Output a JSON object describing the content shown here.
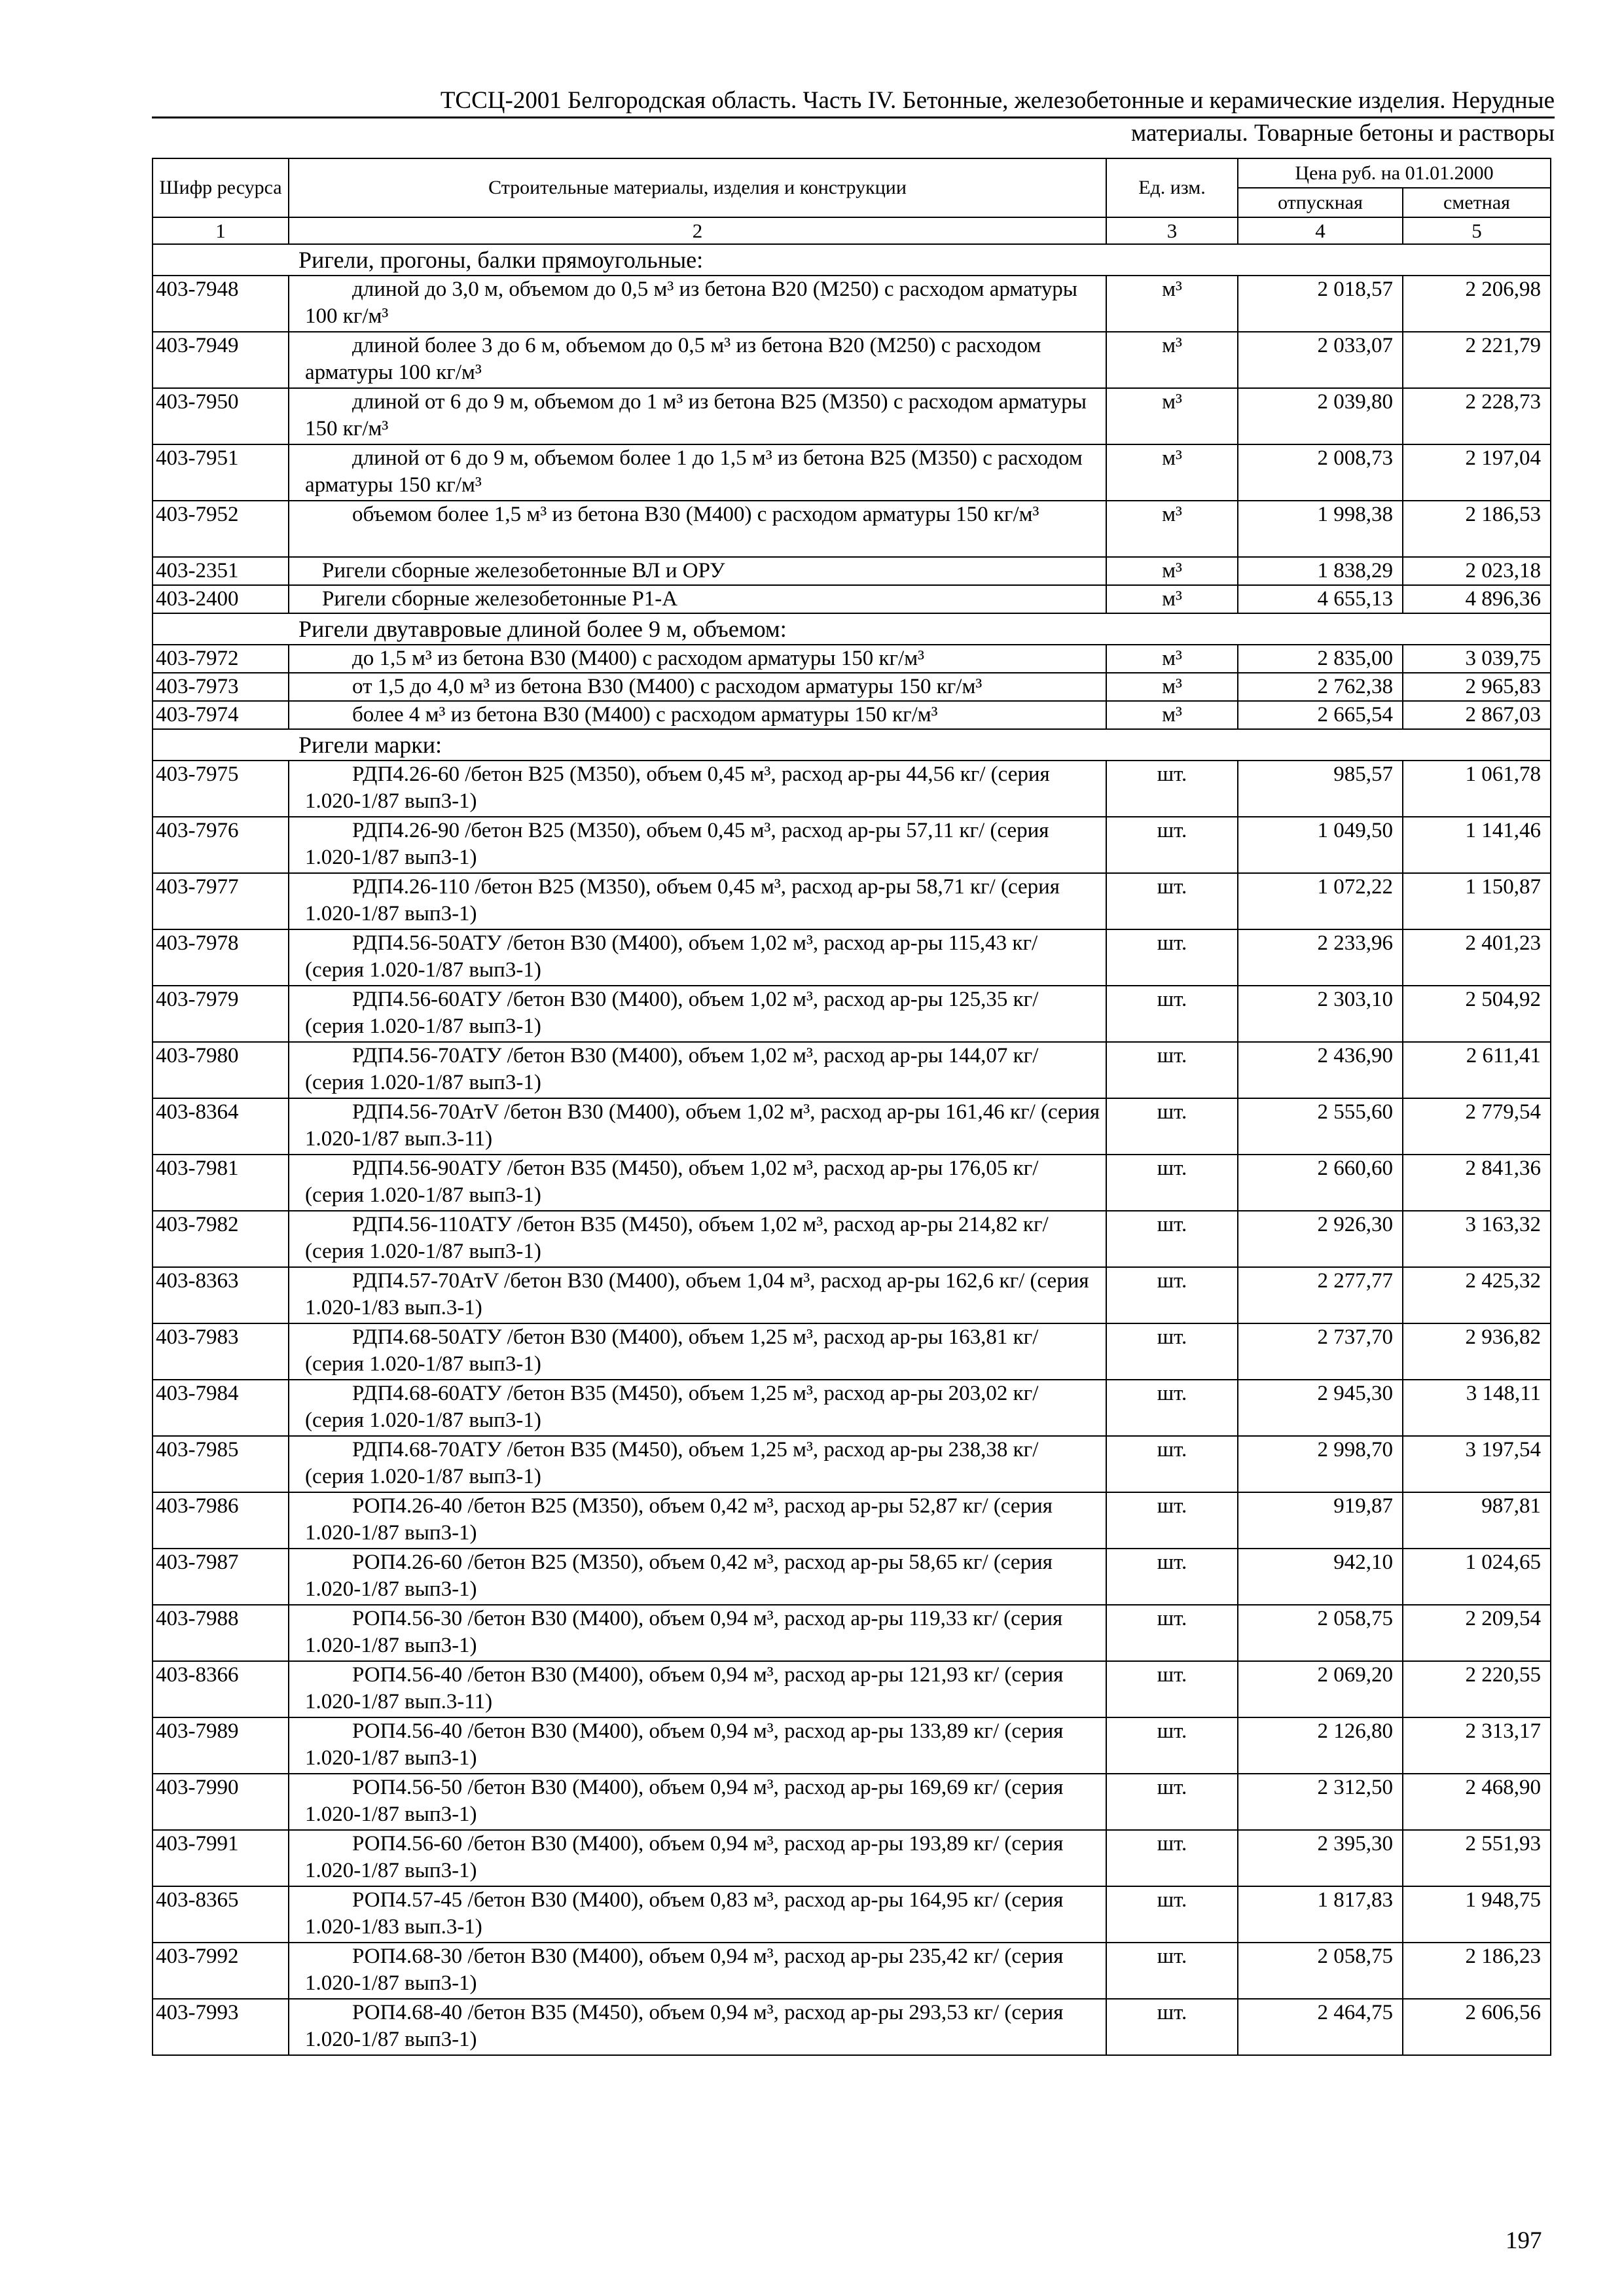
{
  "header": {
    "line1": "ТССЦ-2001 Белгородская область. Часть IV. Бетонные, железобетонные и керамические изделия. Нерудные",
    "line2": "материалы. Товарные бетоны и растворы"
  },
  "table": {
    "col_code": "Шифр ресурса",
    "col_desc": "Строительные материалы, изделия и конструкции",
    "col_unit": "Ед. изм.",
    "col_price": "Цена руб. на 01.01.2000",
    "col_release": "отпускная",
    "col_estimate": "сметная",
    "col_numbers": [
      "1",
      "2",
      "3",
      "4",
      "5"
    ]
  },
  "groups": [
    {
      "title": "Ригели, прогоны, балки прямоугольные:",
      "rows": [
        {
          "code": "403-7948",
          "desc": "длиной до 3,0 м, объемом до 0,5 м³ из бетона В20 (М250) с расходом арматуры 100 кг/м³",
          "unit": "м³",
          "release": "2 018,57",
          "estimate": "2 206,98"
        },
        {
          "code": "403-7949",
          "desc": "длиной более 3 до 6 м, объемом до 0,5 м³ из бетона В20 (М250) с расходом арматуры 100 кг/м³",
          "unit": "м³",
          "release": "2 033,07",
          "estimate": "2 221,79"
        },
        {
          "code": "403-7950",
          "desc": "длиной от 6 до 9 м, объемом до 1 м³ из бетона В25 (М350) с расходом арматуры 150 кг/м³",
          "unit": "м³",
          "release": "2 039,80",
          "estimate": "2 228,73"
        },
        {
          "code": "403-7951",
          "desc": "длиной от 6 до 9 м, объемом более 1 до 1,5 м³ из бетона В25 (М350) с расходом арматуры 150 кг/м³",
          "unit": "м³",
          "release": "2 008,73",
          "estimate": "2 197,04"
        },
        {
          "code": "403-7952",
          "desc": "объемом более 1,5 м³ из бетона В30 (М400) с расходом арматуры 150 кг/м³",
          "unit": "м³",
          "release": "1 998,38",
          "estimate": "2 186,53"
        },
        {
          "code": "403-2351",
          "desc": "Ригели сборные железобетонные ВЛ и ОРУ",
          "unit": "м³",
          "release": "1 838,29",
          "estimate": "2 023,18",
          "short": true
        },
        {
          "code": "403-2400",
          "desc": "Ригели сборные железобетонные Р1-А",
          "unit": "м³",
          "release": "4 655,13",
          "estimate": "4 896,36",
          "short": true
        }
      ]
    },
    {
      "title": "Ригели двутавровые длиной более 9 м, объемом:",
      "rows": [
        {
          "code": "403-7972",
          "desc": "до 1,5 м³ из бетона В30 (М400) с расходом арматуры 150 кг/м³",
          "unit": "м³",
          "release": "2 835,00",
          "estimate": "3 039,75",
          "one": true
        },
        {
          "code": "403-7973",
          "desc": "от 1,5 до 4,0 м³ из бетона В30 (М400) с расходом арматуры 150 кг/м³",
          "unit": "м³",
          "release": "2 762,38",
          "estimate": "2 965,83",
          "one": true
        },
        {
          "code": "403-7974",
          "desc": "более 4 м³ из бетона В30 (М400) с расходом арматуры 150 кг/м³",
          "unit": "м³",
          "release": "2 665,54",
          "estimate": "2 867,03",
          "one": true
        }
      ]
    },
    {
      "title": "Ригели марки:",
      "rows": [
        {
          "code": "403-7975",
          "desc": "РДП4.26-60 /бетон В25 (М350), объем 0,45 м³, расход ар-ры 44,56 кг/ (серия 1.020-1/87 вып3-1)",
          "unit": "шт.",
          "release": "985,57",
          "estimate": "1 061,78"
        },
        {
          "code": "403-7976",
          "desc": "РДП4.26-90 /бетон В25 (М350), объем 0,45 м³, расход ар-ры 57,11 кг/ (серия 1.020-1/87 вып3-1)",
          "unit": "шт.",
          "release": "1 049,50",
          "estimate": "1 141,46"
        },
        {
          "code": "403-7977",
          "desc": "РДП4.26-110 /бетон В25 (М350), объем 0,45 м³, расход ар-ры 58,71 кг/ (серия 1.020-1/87 вып3-1)",
          "unit": "шт.",
          "release": "1 072,22",
          "estimate": "1 150,87"
        },
        {
          "code": "403-7978",
          "desc": "РДП4.56-50АТУ /бетон В30 (М400), объем 1,02 м³, расход ар-ры 115,43 кг/ (серия 1.020-1/87 вып3-1)",
          "unit": "шт.",
          "release": "2 233,96",
          "estimate": "2 401,23"
        },
        {
          "code": "403-7979",
          "desc": "РДП4.56-60АТУ /бетон В30 (М400), объем 1,02 м³, расход ар-ры 125,35 кг/ (серия 1.020-1/87 вып3-1)",
          "unit": "шт.",
          "release": "2 303,10",
          "estimate": "2 504,92"
        },
        {
          "code": "403-7980",
          "desc": "РДП4.56-70АТУ /бетон В30 (М400), объем 1,02 м³, расход ар-ры 144,07 кг/ (серия 1.020-1/87 вып3-1)",
          "unit": "шт.",
          "release": "2 436,90",
          "estimate": "2 611,41"
        },
        {
          "code": "403-8364",
          "desc": "РДП4.56-70АтV /бетон В30 (М400), объем 1,02 м³, расход ар-ры 161,46 кг/ (серия 1.020-1/87 вып.3-11)",
          "unit": "шт.",
          "release": "2 555,60",
          "estimate": "2 779,54"
        },
        {
          "code": "403-7981",
          "desc": "РДП4.56-90АТУ /бетон В35 (М450), объем 1,02 м³, расход ар-ры 176,05 кг/ (серия 1.020-1/87 вып3-1)",
          "unit": "шт.",
          "release": "2 660,60",
          "estimate": "2 841,36"
        },
        {
          "code": "403-7982",
          "desc": "РДП4.56-110АТУ /бетон В35 (М450), объем 1,02 м³, расход ар-ры 214,82 кг/ (серия 1.020-1/87 вып3-1)",
          "unit": "шт.",
          "release": "2 926,30",
          "estimate": "3 163,32"
        },
        {
          "code": "403-8363",
          "desc": "РДП4.57-70АтV /бетон В30 (М400), объем 1,04 м³, расход ар-ры 162,6 кг/ (серия 1.020-1/83 вып.3-1)",
          "unit": "шт.",
          "release": "2 277,77",
          "estimate": "2 425,32"
        },
        {
          "code": "403-7983",
          "desc": "РДП4.68-50АТУ /бетон В30 (М400), объем 1,25 м³, расход ар-ры 163,81 кг/ (серия 1.020-1/87 вып3-1)",
          "unit": "шт.",
          "release": "2 737,70",
          "estimate": "2 936,82"
        },
        {
          "code": "403-7984",
          "desc": "РДП4.68-60АТУ /бетон В35 (М450), объем 1,25 м³, расход ар-ры 203,02 кг/ (серия 1.020-1/87 вып3-1)",
          "unit": "шт.",
          "release": "2 945,30",
          "estimate": "3 148,11"
        },
        {
          "code": "403-7985",
          "desc": "РДП4.68-70АТУ /бетон В35 (М450), объем 1,25 м³, расход ар-ры 238,38 кг/ (серия 1.020-1/87 вып3-1)",
          "unit": "шт.",
          "release": "2 998,70",
          "estimate": "3 197,54"
        },
        {
          "code": "403-7986",
          "desc": "РОП4.26-40 /бетон В25 (М350), объем 0,42 м³, расход ар-ры 52,87 кг/ (серия 1.020-1/87 вып3-1)",
          "unit": "шт.",
          "release": "919,87",
          "estimate": "987,81"
        },
        {
          "code": "403-7987",
          "desc": "РОП4.26-60 /бетон В25 (М350), объем 0,42 м³, расход ар-ры 58,65 кг/ (серия 1.020-1/87 вып3-1)",
          "unit": "шт.",
          "release": "942,10",
          "estimate": "1 024,65"
        },
        {
          "code": "403-7988",
          "desc": "РОП4.56-30 /бетон В30 (М400), объем 0,94 м³, расход ар-ры 119,33 кг/ (серия 1.020-1/87 вып3-1)",
          "unit": "шт.",
          "release": "2 058,75",
          "estimate": "2 209,54"
        },
        {
          "code": "403-8366",
          "desc": "РОП4.56-40 /бетон В30 (М400), объем 0,94 м³, расход ар-ры 121,93 кг/ (серия 1.020-1/87 вып.3-11)",
          "unit": "шт.",
          "release": "2 069,20",
          "estimate": "2 220,55"
        },
        {
          "code": "403-7989",
          "desc": "РОП4.56-40 /бетон В30 (М400), объем 0,94 м³, расход ар-ры 133,89 кг/ (серия 1.020-1/87 вып3-1)",
          "unit": "шт.",
          "release": "2 126,80",
          "estimate": "2 313,17"
        },
        {
          "code": "403-7990",
          "desc": "РОП4.56-50 /бетон В30 (М400), объем 0,94 м³, расход ар-ры 169,69 кг/ (серия 1.020-1/87 вып3-1)",
          "unit": "шт.",
          "release": "2 312,50",
          "estimate": "2 468,90"
        },
        {
          "code": "403-7991",
          "desc": "РОП4.56-60 /бетон В30 (М400), объем 0,94 м³, расход ар-ры 193,89 кг/ (серия 1.020-1/87 вып3-1)",
          "unit": "шт.",
          "release": "2 395,30",
          "estimate": "2 551,93"
        },
        {
          "code": "403-8365",
          "desc": "РОП4.57-45 /бетон В30 (М400), объем 0,83 м³, расход ар-ры 164,95 кг/ (серия 1.020-1/83 вып.3-1)",
          "unit": "шт.",
          "release": "1 817,83",
          "estimate": "1 948,75"
        },
        {
          "code": "403-7992",
          "desc": "РОП4.68-30 /бетон В30 (М400), объем 0,94 м³, расход ар-ры 235,42 кг/ (серия 1.020-1/87 вып3-1)",
          "unit": "шт.",
          "release": "2 058,75",
          "estimate": "2 186,23"
        },
        {
          "code": "403-7993",
          "desc": "РОП4.68-40 /бетон В35 (М450), объем 0,94 м³, расход ар-ры 293,53 кг/ (серия 1.020-1/87 вып3-1)",
          "unit": "шт.",
          "release": "2 464,75",
          "estimate": "2 606,56"
        }
      ]
    }
  ],
  "page_number": "197"
}
